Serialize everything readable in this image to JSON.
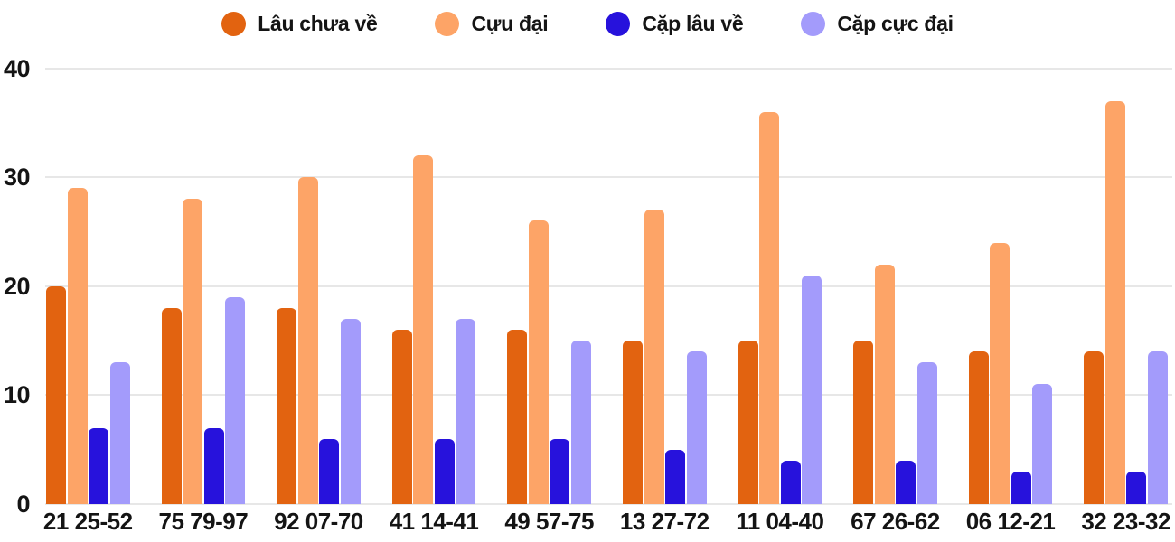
{
  "chart_data": {
    "type": "bar",
    "title": "",
    "xlabel": "",
    "ylabel": "",
    "categories": [
      "21 25-52",
      "75 79-97",
      "92 07-70",
      "41 14-41",
      "49 57-75",
      "13 27-72",
      "11 04-40",
      "67 26-62",
      "06 12-21",
      "32 23-32"
    ],
    "series": [
      {
        "name": "Lâu chưa về",
        "color": "#e26310",
        "values": [
          20,
          18,
          18,
          16,
          16,
          15,
          15,
          15,
          14,
          14
        ]
      },
      {
        "name": "Cựu đại",
        "color": "#fda467",
        "values": [
          29,
          28,
          30,
          32,
          26,
          27,
          36,
          22,
          24,
          37
        ]
      },
      {
        "name": "Cặp lâu về",
        "color": "#2712dc",
        "values": [
          7,
          7,
          6,
          6,
          6,
          5,
          4,
          4,
          3,
          3
        ]
      },
      {
        "name": "Cặp cực đại",
        "color": "#a39bfb",
        "values": [
          13,
          19,
          17,
          17,
          15,
          14,
          21,
          13,
          11,
          14
        ]
      }
    ],
    "y_ticks": [
      0,
      10,
      20,
      30,
      40
    ],
    "ylim": [
      0,
      40
    ],
    "grid": true,
    "legend_position": "top"
  },
  "colors": {
    "grid": "#e7e7e7",
    "text": "#141414",
    "background": "#ffffff"
  }
}
